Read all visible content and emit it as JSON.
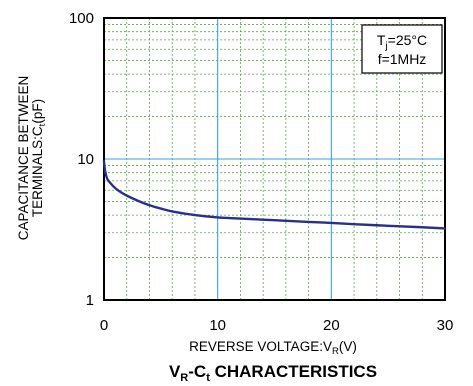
{
  "chart_data": {
    "type": "line",
    "title": {
      "main": "V",
      "sub1": "R",
      "mid": "-C",
      "sub2": "t",
      "tail": " CHARACTERISTICS"
    },
    "xlabel": {
      "main": "REVERSE VOLTAGE:V",
      "sub": "R",
      "tail": "(V)"
    },
    "ylabel": {
      "line1": "CAPACITANCE BETWEEN",
      "line2": {
        "main": "TERMINALS:C",
        "sub": "t",
        "tail": "(pF)"
      }
    },
    "x_scale": "linear",
    "y_scale": "log",
    "xlim": [
      0,
      30
    ],
    "ylim": [
      1,
      100
    ],
    "x_ticks": [
      "0",
      "10",
      "20",
      "30"
    ],
    "y_ticks": [
      "1",
      "10",
      "100"
    ],
    "grid": true,
    "conditions": {
      "line1": {
        "main": "T",
        "sub": "j",
        "tail": "=25°C"
      },
      "line2": "f=1MHz"
    },
    "series": [
      {
        "color": "#2a2f8a",
        "x": [
          0,
          0.1,
          0.3,
          0.6,
          1,
          1.5,
          2,
          3,
          4,
          5,
          6,
          8,
          10,
          12,
          15,
          18,
          20,
          22,
          25,
          28,
          30
        ],
        "y": [
          9.6,
          8.2,
          7.2,
          6.7,
          6.2,
          5.8,
          5.5,
          5.05,
          4.7,
          4.45,
          4.25,
          4.0,
          3.85,
          3.78,
          3.68,
          3.58,
          3.52,
          3.45,
          3.36,
          3.28,
          3.22
        ]
      }
    ]
  }
}
